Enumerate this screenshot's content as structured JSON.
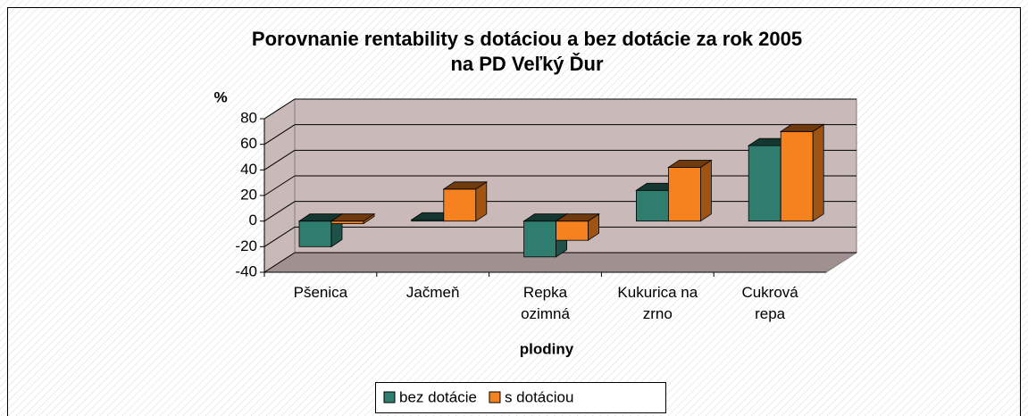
{
  "chart_data": {
    "type": "bar3d",
    "title": [
      "Porovnanie rentability s dotáciou a bez dotácie za rok 2005",
      "na PD Veľký Ďur"
    ],
    "y_label": "%",
    "x_label": "plodiny",
    "categories": [
      "Pšenica",
      "Jačmeň",
      "Repka ozimná",
      "Kukurica na zrno",
      "Cukrová repa"
    ],
    "series": [
      {
        "name": "bez dotácie",
        "color": "#2e7d6e",
        "values": [
          -20,
          1,
          -28,
          24,
          59
        ]
      },
      {
        "name": "s dotáciou",
        "color": "#f5821f",
        "values": [
          -2,
          25,
          -15,
          42,
          70
        ]
      }
    ],
    "ylim": [
      -40,
      80
    ],
    "yticks": [
      -40,
      -20,
      0,
      20,
      40,
      60,
      80
    ],
    "grid": true,
    "legend": "bottom"
  }
}
